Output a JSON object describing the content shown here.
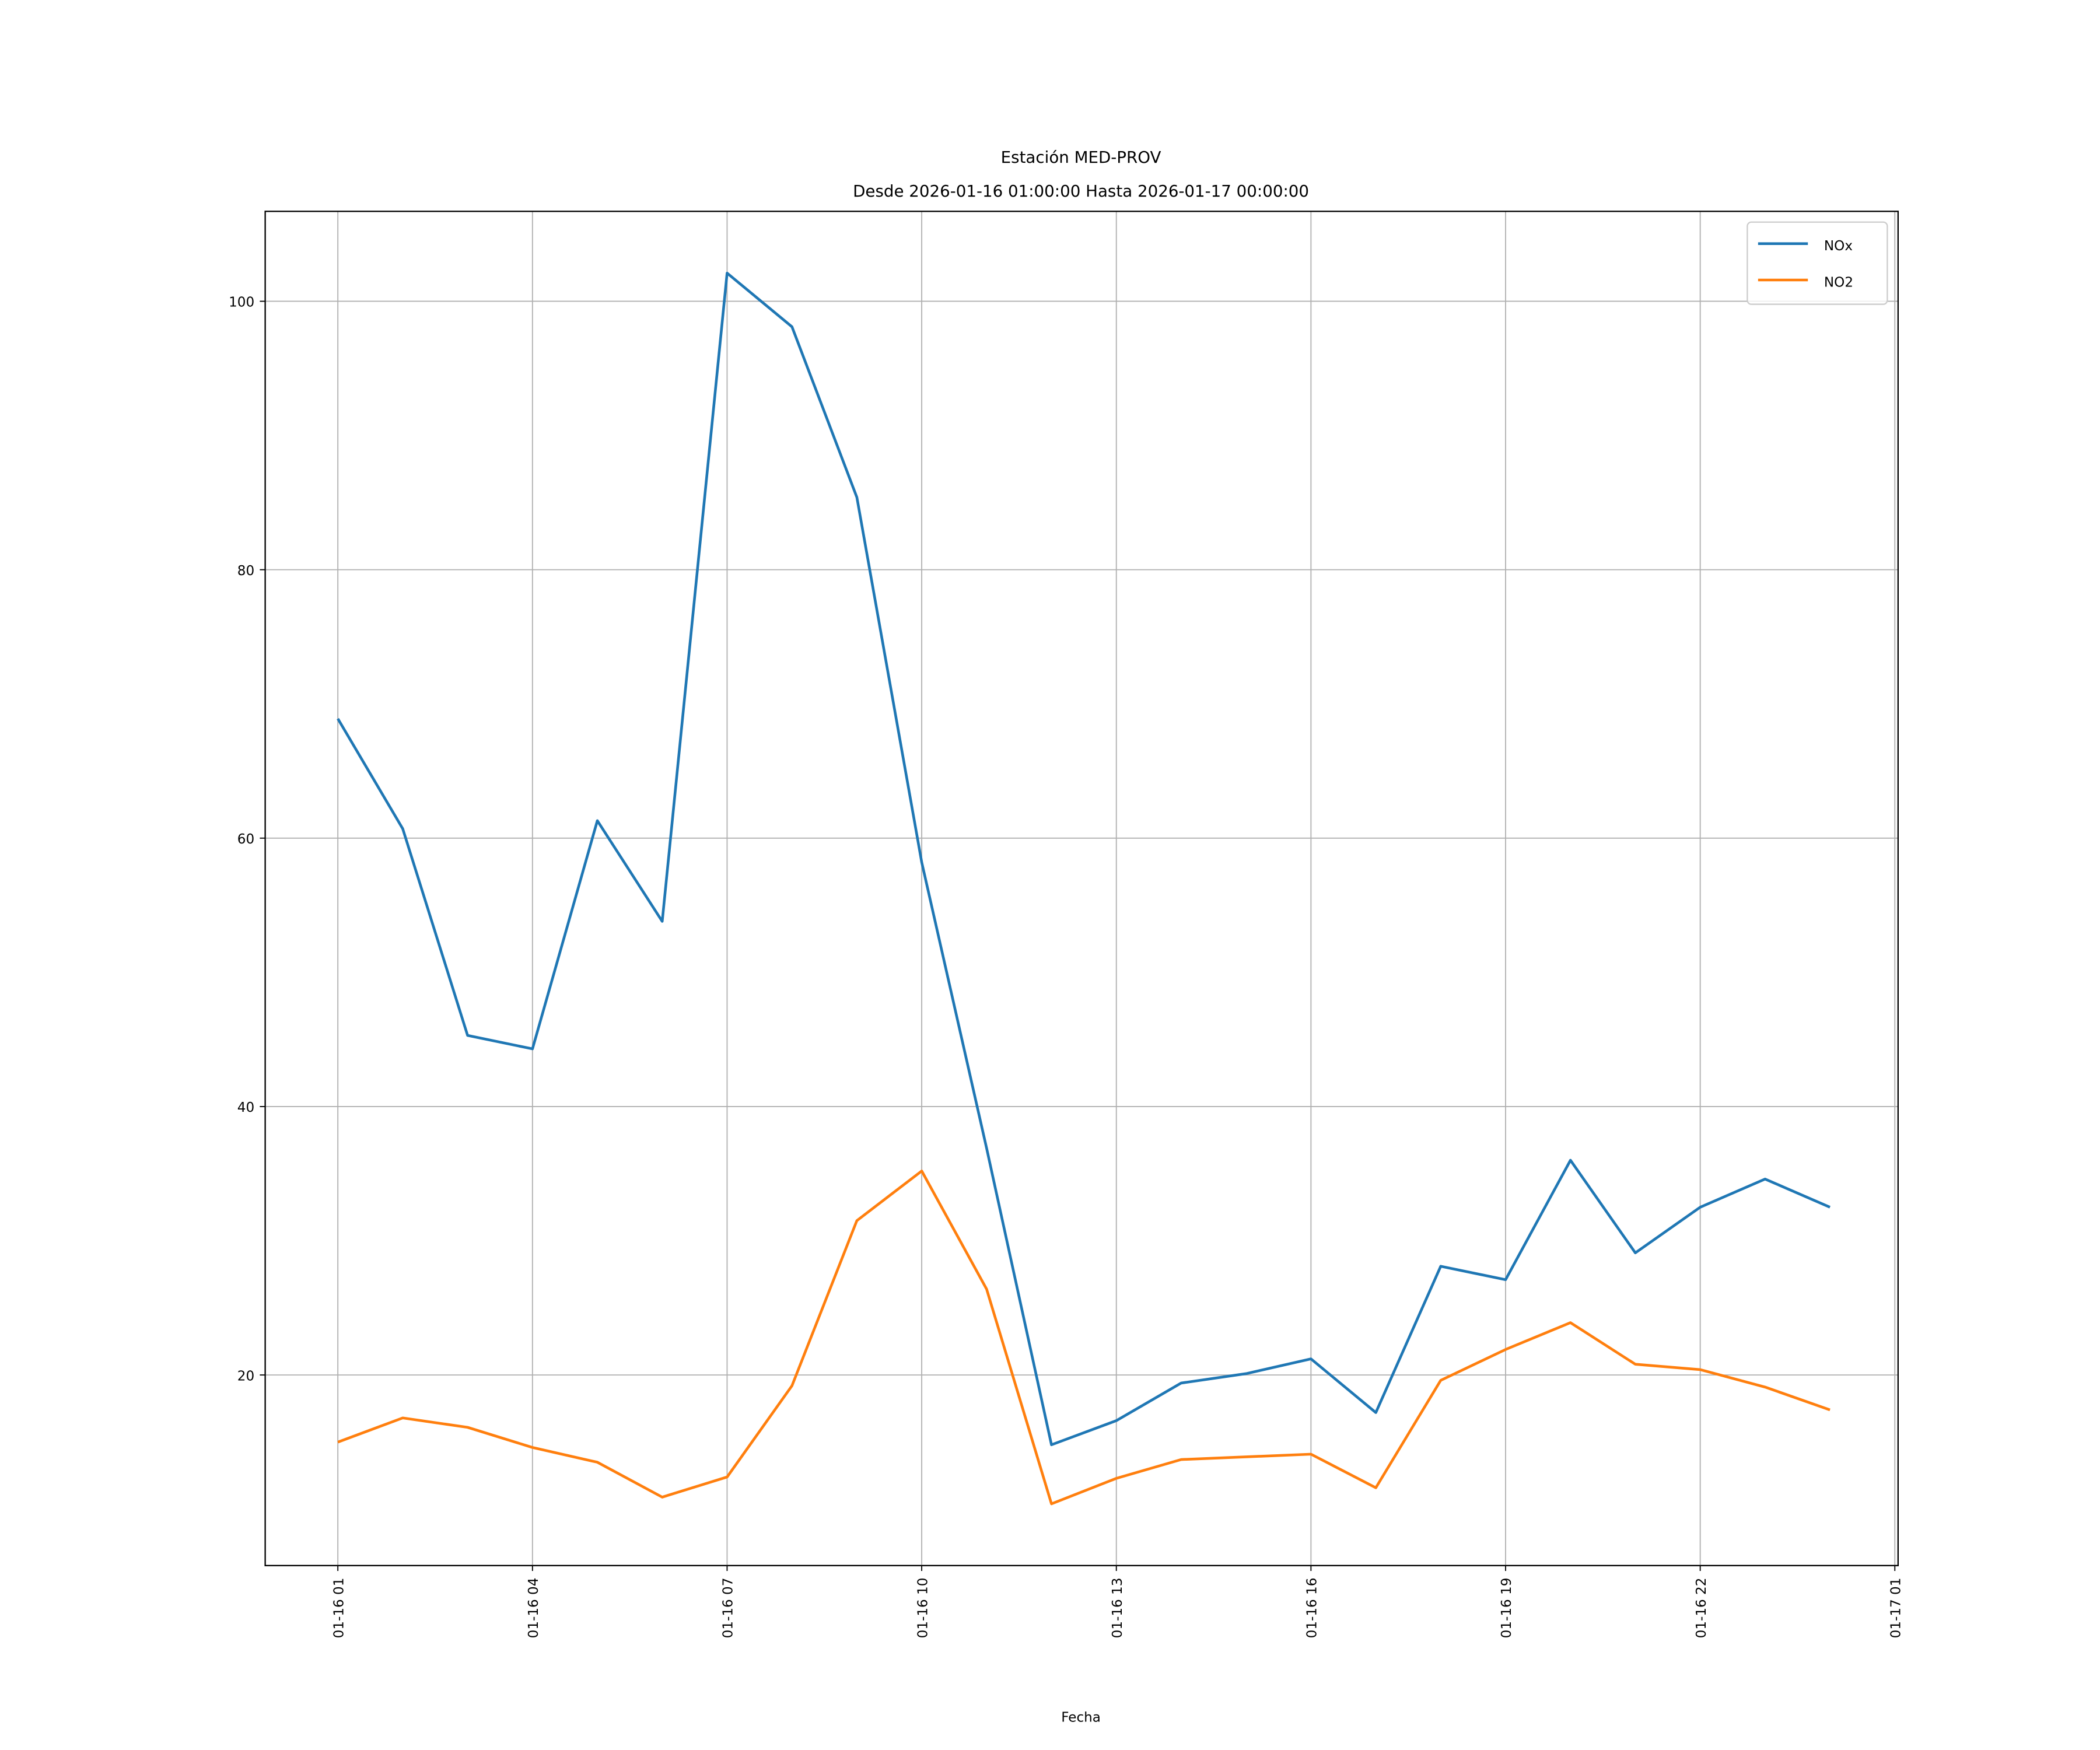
{
  "chart_data": {
    "type": "line",
    "title": "Estación MED-PROV",
    "subtitle": "Desde 2026-01-16 01:00:00 Hasta 2026-01-17 00:00:00",
    "xlabel": "Fecha",
    "ylabel": "",
    "x_hours_from_start": [
      0,
      1,
      2,
      3,
      4,
      5,
      6,
      7,
      8,
      9,
      10,
      11,
      12,
      13,
      14,
      15,
      16,
      17,
      18,
      19,
      20,
      21,
      22,
      23
    ],
    "x": [
      "2026-01-16 01:00",
      "2026-01-16 02:00",
      "2026-01-16 03:00",
      "2026-01-16 04:00",
      "2026-01-16 05:00",
      "2026-01-16 06:00",
      "2026-01-16 07:00",
      "2026-01-16 08:00",
      "2026-01-16 09:00",
      "2026-01-16 10:00",
      "2026-01-16 11:00",
      "2026-01-16 12:00",
      "2026-01-16 13:00",
      "2026-01-16 14:00",
      "2026-01-16 15:00",
      "2026-01-16 16:00",
      "2026-01-16 17:00",
      "2026-01-16 18:00",
      "2026-01-16 19:00",
      "2026-01-16 20:00",
      "2026-01-16 21:00",
      "2026-01-16 22:00",
      "2026-01-16 23:00",
      "2026-01-17 00:00"
    ],
    "series": [
      {
        "name": "NOx",
        "color": "#1f77b4",
        "values": [
          68.9,
          60.7,
          45.3,
          44.3,
          61.3,
          53.8,
          102.1,
          98.1,
          85.4,
          58.2,
          36.9,
          14.8,
          16.6,
          19.4,
          20.1,
          21.2,
          17.2,
          28.1,
          27.1,
          36.0,
          29.1,
          32.5,
          34.6,
          32.5
        ]
      },
      {
        "name": "NO2",
        "color": "#ff7f0e",
        "values": [
          15.0,
          16.8,
          16.1,
          14.6,
          13.5,
          10.9,
          12.4,
          19.2,
          31.5,
          35.2,
          26.4,
          10.4,
          12.3,
          13.7,
          13.9,
          14.1,
          11.6,
          19.6,
          21.9,
          23.9,
          20.8,
          20.4,
          19.1,
          17.4
        ]
      }
    ],
    "xlim_hours": [
      -1.12,
      24.05
    ],
    "ylim": [
      5.8,
      106.7
    ],
    "yticks": [
      20,
      40,
      60,
      80,
      100
    ],
    "xticks_hours": [
      0,
      3,
      6,
      9,
      12,
      15,
      18,
      21,
      24
    ],
    "xtick_labels": [
      "01-16 01",
      "01-16 04",
      "01-16 07",
      "01-16 10",
      "01-16 13",
      "01-16 16",
      "01-16 19",
      "01-16 22",
      "01-17 01"
    ],
    "grid": true,
    "legend_position": "top-right"
  }
}
